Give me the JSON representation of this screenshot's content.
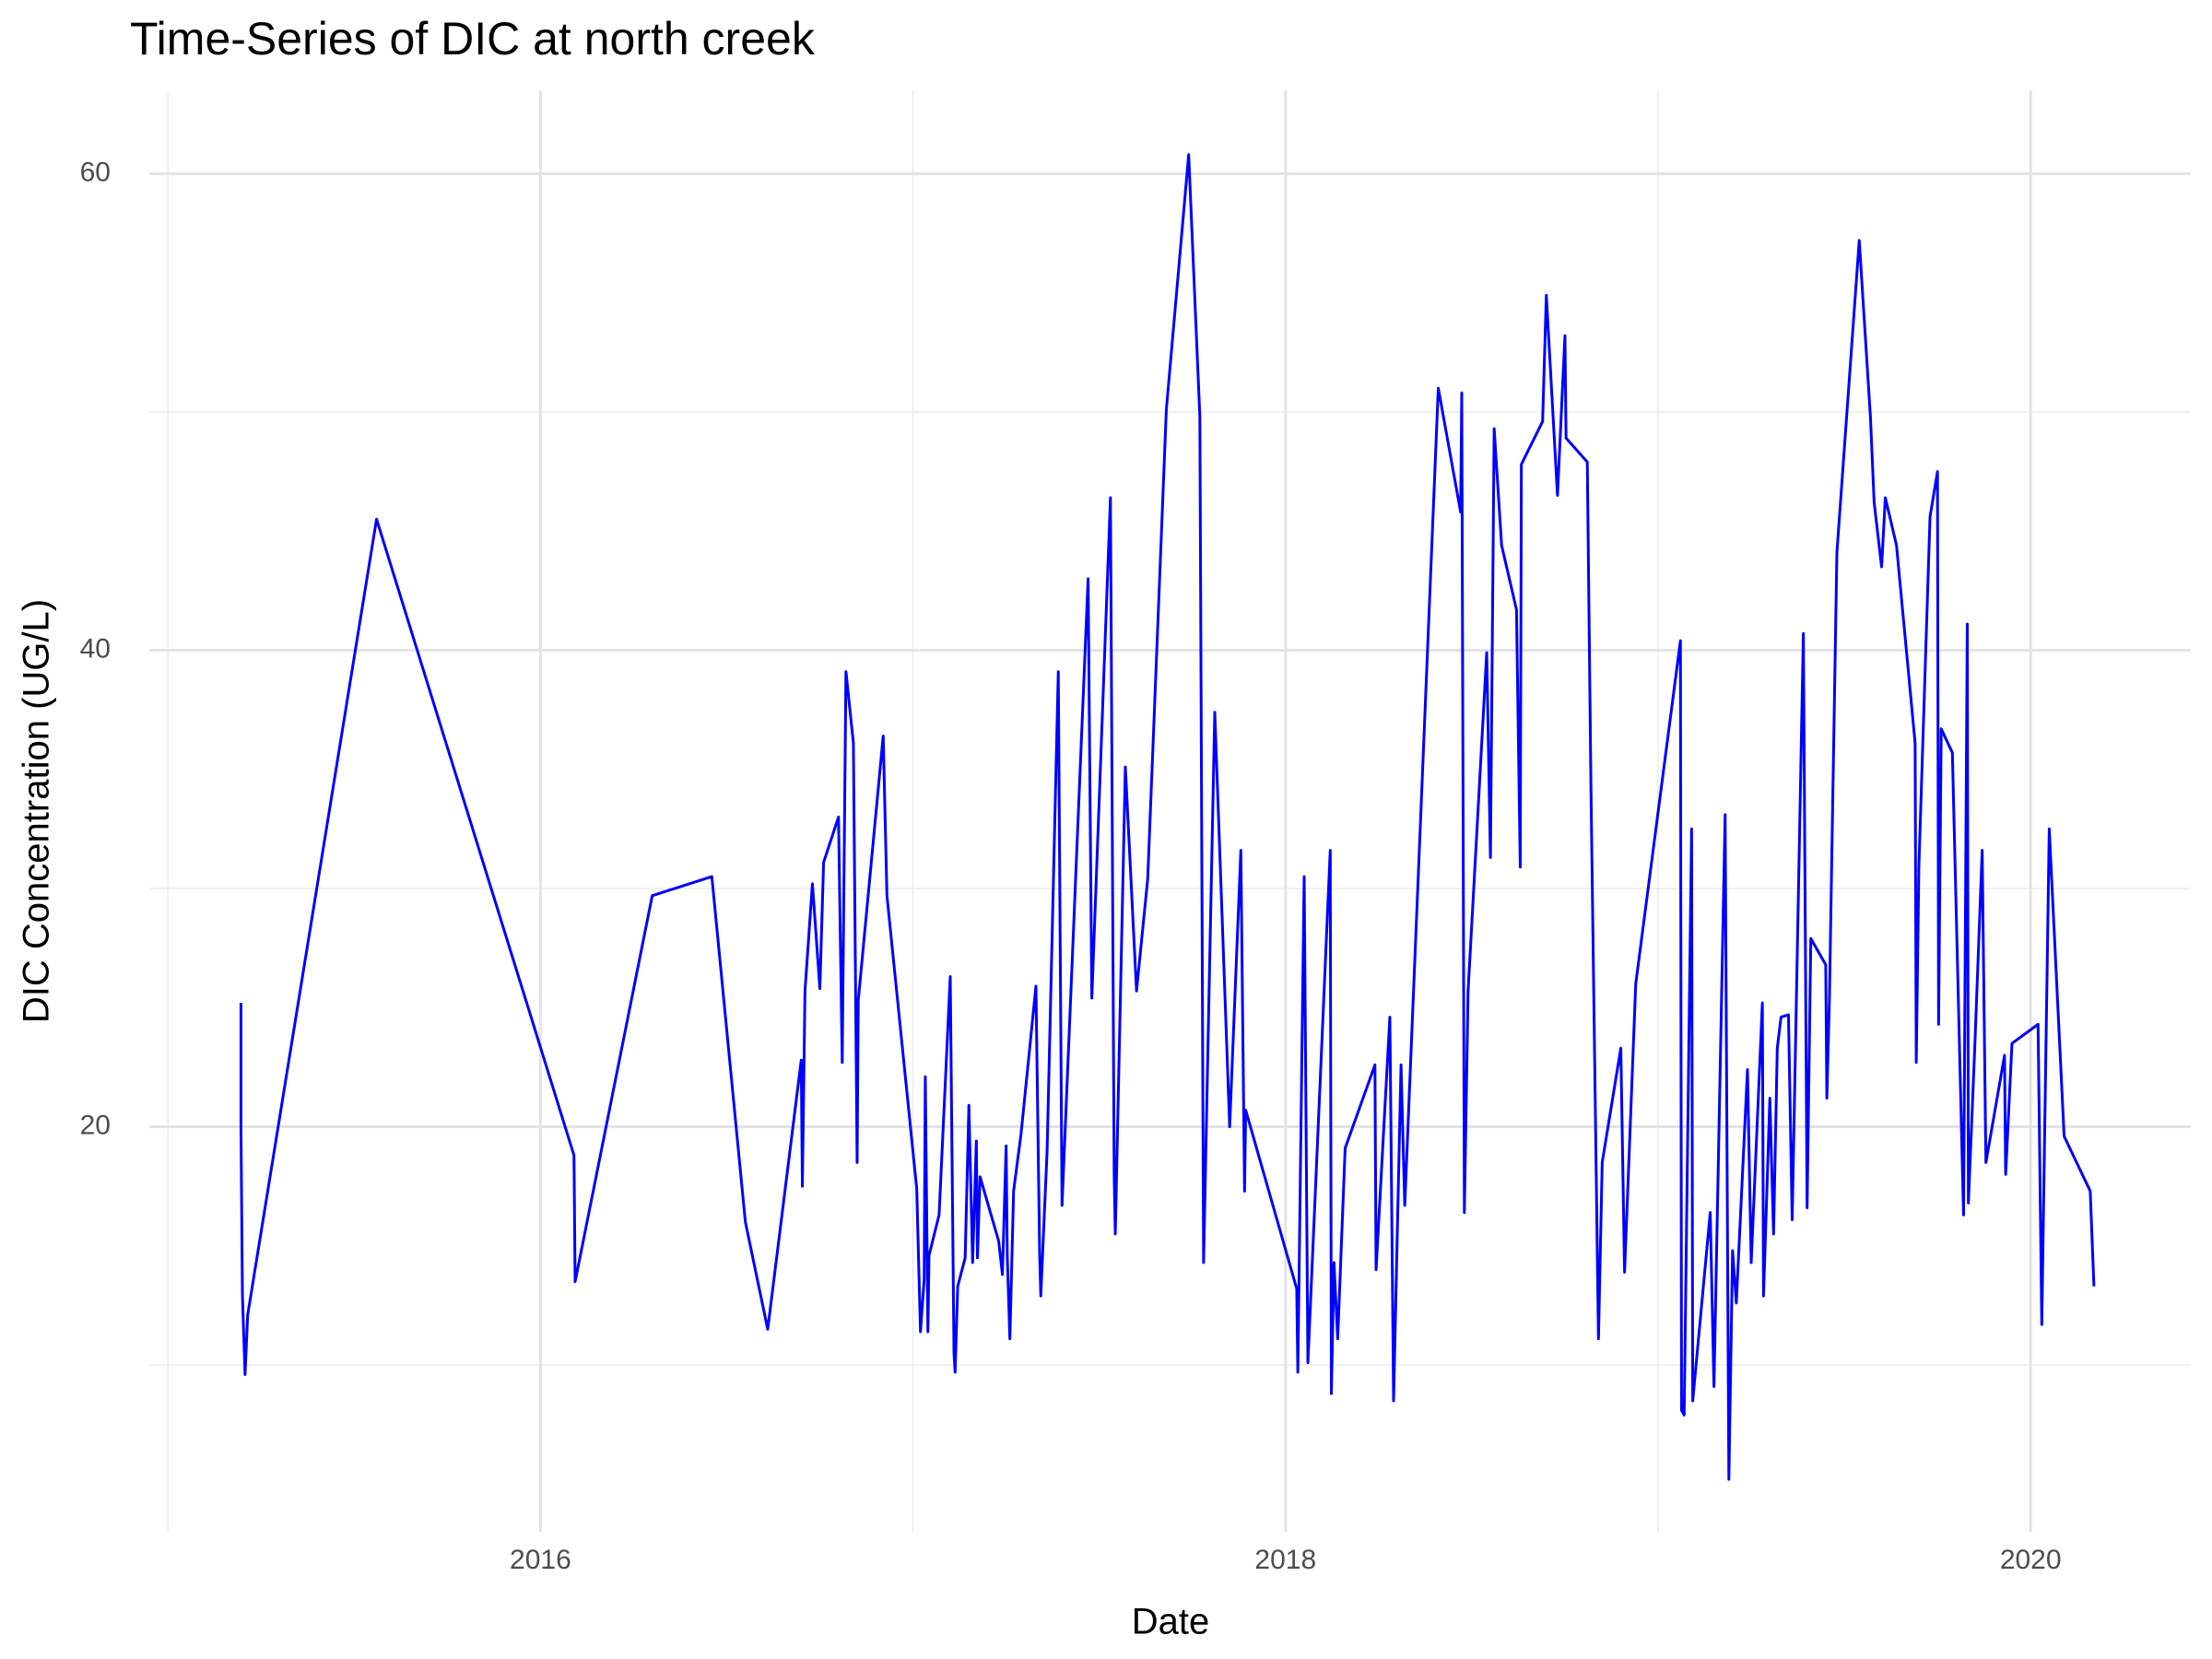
{
  "chart_data": {
    "type": "line",
    "title": "Time-Series of DIC at north creek",
    "x_label": "Date",
    "y_label": "DIC Concentration (UG/L)",
    "xlim": [
      2014.95,
      2020.43
    ],
    "ylim": [
      3,
      63.5
    ],
    "xticks": [
      2016,
      2018,
      2020
    ],
    "yticks": [
      20,
      40,
      60
    ],
    "minor_xticks": [
      2015,
      2017,
      2019
    ],
    "minor_yticks": [
      10,
      30,
      50
    ],
    "grid": true,
    "series": [
      {
        "color": "#0000ff",
        "x": [
          2015.196,
          2015.196,
          2015.2,
          2015.207,
          2015.214,
          2015.56,
          2016.09,
          2016.093,
          2016.3,
          2016.46,
          2016.55,
          2016.61,
          2016.7,
          2016.703,
          2016.71,
          2016.73,
          2016.75,
          2016.76,
          2016.8,
          2016.81,
          2016.82,
          2016.84,
          2016.85,
          2016.853,
          2016.92,
          2016.93,
          2017.01,
          2017.02,
          2017.03,
          2017.033,
          2017.04,
          2017.043,
          2017.07,
          2017.1,
          2017.11,
          2017.113,
          2017.12,
          2017.14,
          2017.15,
          2017.16,
          2017.17,
          2017.173,
          2017.18,
          2017.23,
          2017.24,
          2017.25,
          2017.253,
          2017.26,
          2017.27,
          2017.29,
          2017.33,
          2017.34,
          2017.343,
          2017.36,
          2017.39,
          2017.4,
          2017.47,
          2017.48,
          2017.53,
          2017.54,
          2017.543,
          2017.57,
          2017.6,
          2017.63,
          2017.68,
          2017.74,
          2017.77,
          2017.78,
          2017.81,
          2017.85,
          2017.88,
          2017.89,
          2017.893,
          2018.03,
          2018.033,
          2018.05,
          2018.06,
          2018.12,
          2018.123,
          2018.13,
          2018.14,
          2018.16,
          2018.24,
          2018.243,
          2018.28,
          2018.29,
          2018.31,
          2018.32,
          2018.41,
          2018.47,
          2018.473,
          2018.48,
          2018.49,
          2018.54,
          2018.55,
          2018.56,
          2018.58,
          2018.62,
          2018.63,
          2018.633,
          2018.69,
          2018.7,
          2018.73,
          2018.75,
          2018.753,
          2018.81,
          2018.82,
          2018.84,
          2018.85,
          2018.9,
          2018.91,
          2018.92,
          2018.94,
          2019.06,
          2019.063,
          2019.07,
          2019.09,
          2019.093,
          2019.14,
          2019.15,
          2019.18,
          2019.19,
          2019.2,
          2019.21,
          2019.24,
          2019.25,
          2019.28,
          2019.283,
          2019.3,
          2019.31,
          2019.32,
          2019.33,
          2019.35,
          2019.36,
          2019.39,
          2019.4,
          2019.41,
          2019.45,
          2019.453,
          2019.46,
          2019.48,
          2019.54,
          2019.57,
          2019.58,
          2019.6,
          2019.61,
          2019.64,
          2019.69,
          2019.693,
          2019.7,
          2019.73,
          2019.75,
          2019.753,
          2019.76,
          2019.79,
          2019.82,
          2019.83,
          2019.833,
          2019.85,
          2019.87,
          2019.88,
          2019.93,
          2019.933,
          2019.95,
          2020.02,
          2020.03,
          2020.05,
          2020.09,
          2020.16,
          2020.17
        ],
        "values": [
          25.2,
          20.0,
          12.9,
          9.6,
          12.1,
          45.5,
          18.8,
          13.5,
          29.7,
          30.5,
          16.0,
          11.5,
          22.8,
          17.5,
          25.7,
          30.2,
          25.8,
          31.1,
          33.0,
          22.7,
          39.1,
          36.1,
          18.5,
          25.3,
          36.4,
          29.7,
          17.4,
          11.4,
          13.6,
          22.1,
          11.4,
          14.6,
          16.3,
          26.3,
          10.5,
          9.7,
          13.3,
          14.5,
          20.9,
          14.3,
          19.4,
          14.5,
          17.9,
          15.2,
          13.8,
          19.2,
          14.6,
          11.1,
          17.3,
          19.7,
          25.9,
          14.6,
          12.9,
          19.0,
          39.1,
          16.7,
          43.0,
          25.4,
          46.4,
          18.0,
          15.5,
          35.1,
          25.7,
          30.4,
          50.1,
          60.8,
          49.8,
          14.3,
          37.4,
          20.0,
          31.6,
          17.3,
          20.7,
          13.2,
          9.7,
          30.5,
          10.1,
          31.6,
          8.8,
          14.3,
          11.1,
          19.1,
          22.6,
          14.0,
          24.6,
          8.5,
          22.6,
          16.7,
          51.0,
          45.8,
          50.8,
          16.4,
          25.7,
          39.9,
          31.3,
          49.3,
          44.4,
          41.7,
          30.9,
          47.8,
          49.6,
          54.9,
          46.5,
          53.2,
          48.9,
          47.9,
          34.0,
          11.1,
          18.5,
          23.3,
          13.9,
          17.9,
          26.0,
          40.4,
          8.1,
          7.9,
          32.5,
          8.5,
          16.4,
          9.1,
          33.1,
          5.2,
          14.8,
          12.6,
          22.4,
          14.3,
          25.2,
          12.9,
          21.2,
          15.5,
          23.3,
          24.6,
          24.7,
          16.1,
          40.7,
          16.6,
          27.9,
          26.8,
          21.2,
          25.4,
          44.1,
          57.2,
          49.8,
          46.2,
          43.5,
          46.4,
          44.4,
          36.1,
          22.7,
          30.9,
          45.6,
          47.5,
          24.3,
          36.7,
          35.7,
          16.3,
          41.1,
          16.8,
          23.3,
          31.6,
          18.5,
          23.0,
          18.0,
          23.5,
          24.3,
          11.7,
          32.5,
          19.6,
          17.3,
          13.3
        ]
      }
    ]
  }
}
